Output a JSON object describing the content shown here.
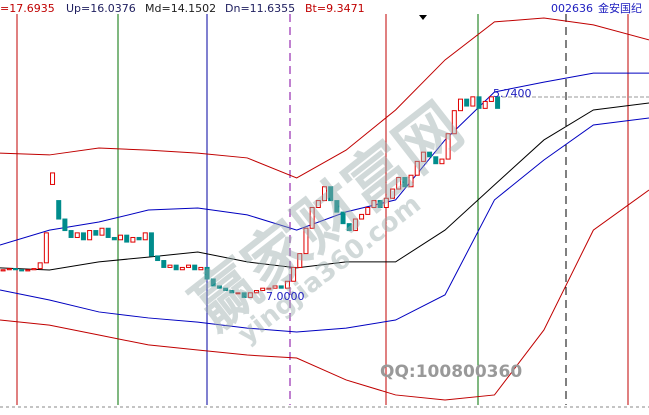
{
  "header": {
    "items": [
      {
        "text": "=17.6935",
        "color": "#c00000"
      },
      {
        "text": "Up=16.0376",
        "color": "#202060"
      },
      {
        "text": "Md=14.1502",
        "color": "#202020"
      },
      {
        "text": "Dn=11.6355",
        "color": "#202060"
      },
      {
        "text": "Bt=9.3471",
        "color": "#c00000"
      }
    ],
    "code": "002636",
    "name": "金安国纪"
  },
  "chart_data": {
    "type": "candlestick",
    "xlim": [
      -0.5,
      104.5
    ],
    "ylim": [
      2,
      20
    ],
    "up_color": "#e00000",
    "down_color": "#008c8c",
    "open": [
      8.25,
      8.3,
      8.35,
      8.3,
      8.25,
      8.3,
      8.35,
      8.6,
      12.0,
      11.3,
      10.5,
      10.0,
      9.7,
      9.9,
      9.6,
      10.0,
      9.8,
      10.1,
      9.7,
      9.6,
      9.8,
      9.5,
      9.7,
      9.6,
      9.9,
      8.9,
      8.7,
      8.4,
      8.5,
      8.3,
      8.4,
      8.5,
      8.3,
      8.4,
      7.9,
      7.6,
      7.5,
      7.4,
      7.3,
      7.3,
      7.1,
      7.3,
      7.4,
      7.5,
      7.5,
      7.6,
      7.5,
      7.8,
      8.4,
      9.0,
      10.1,
      11.0,
      11.3,
      11.9,
      11.3,
      10.8,
      10.3,
      10.0,
      10.5,
      10.7,
      11.0,
      11.3,
      11.0,
      11.4,
      11.8,
      12.3,
      11.9,
      12.4,
      13.0,
      13.4,
      13.2,
      12.9,
      13.1,
      14.2,
      15.2,
      15.7,
      15.4,
      15.8,
      15.3,
      15.6,
      15.8
    ],
    "close": [
      8.3,
      8.35,
      8.3,
      8.25,
      8.3,
      8.35,
      8.6,
      9.9,
      12.5,
      10.5,
      10.0,
      9.7,
      9.9,
      9.6,
      10.0,
      9.8,
      10.1,
      9.7,
      9.6,
      9.8,
      9.5,
      9.7,
      9.6,
      9.9,
      8.9,
      8.7,
      8.4,
      8.5,
      8.3,
      8.4,
      8.5,
      8.3,
      8.4,
      7.9,
      7.6,
      7.5,
      7.4,
      7.3,
      7.3,
      7.1,
      7.3,
      7.4,
      7.5,
      7.5,
      7.6,
      7.5,
      7.8,
      8.4,
      9.0,
      10.1,
      11.0,
      11.3,
      11.9,
      11.3,
      10.8,
      10.3,
      10.0,
      10.5,
      10.7,
      11.0,
      11.3,
      11.0,
      11.4,
      11.8,
      12.3,
      11.9,
      12.4,
      13.0,
      13.4,
      13.2,
      12.9,
      13.1,
      14.2,
      15.2,
      15.7,
      15.4,
      15.8,
      15.3,
      15.6,
      15.8,
      15.3
    ],
    "lines": [
      {
        "color": "#c00000",
        "x": [
          -0.5,
          7.5,
          15.5,
          23.5,
          31.5,
          39.5,
          47.5,
          55.5,
          63.5,
          71.5,
          79.5,
          87.5,
          95.5,
          104.5
        ],
        "values": [
          13.36,
          13.28,
          13.58,
          13.49,
          13.36,
          13.15,
          12.28,
          13.49,
          15.23,
          17.4,
          19.05,
          19.22,
          18.92,
          18.27
        ]
      },
      {
        "color": "#0000c0",
        "x": [
          -0.5,
          7.5,
          15.5,
          23.5,
          31.5,
          39.5,
          47.5,
          55.5,
          63.5,
          71.5,
          79.5,
          87.5,
          95.5,
          104.5
        ],
        "values": [
          9.37,
          10.02,
          10.37,
          10.89,
          10.98,
          10.68,
          10.02,
          10.81,
          11.33,
          13.93,
          16.01,
          16.44,
          16.83,
          16.83
        ]
      },
      {
        "color": "#000000",
        "x": [
          -0.5,
          7.5,
          15.5,
          23.5,
          31.5,
          39.5,
          47.5,
          55.5,
          63.5,
          71.5,
          79.5,
          87.5,
          95.5,
          104.5
        ],
        "values": [
          8.38,
          8.29,
          8.64,
          8.85,
          9.07,
          8.64,
          8.38,
          8.64,
          8.64,
          10.02,
          11.98,
          13.93,
          15.23,
          15.53
        ]
      },
      {
        "color": "#0000c0",
        "x": [
          -0.5,
          7.5,
          15.5,
          23.5,
          31.5,
          39.5,
          47.5,
          55.5,
          63.5,
          71.5,
          79.5,
          87.5,
          95.5,
          104.5
        ],
        "values": [
          7.42,
          6.99,
          6.47,
          6.21,
          6.03,
          5.77,
          5.6,
          5.77,
          6.12,
          7.21,
          11.33,
          13.06,
          14.58,
          14.88
        ]
      },
      {
        "color": "#c00000",
        "x": [
          -0.5,
          7.5,
          15.5,
          23.5,
          31.5,
          39.5,
          47.5,
          55.5,
          63.5,
          71.5,
          79.5,
          87.5,
          95.5,
          104.5
        ],
        "values": [
          6.12,
          5.9,
          5.47,
          5.04,
          4.82,
          4.6,
          4.47,
          3.52,
          2.87,
          2.65,
          2.87,
          5.69,
          10.02,
          11.76
        ]
      }
    ],
    "annotations": [
      "5.7400",
      "7.0000"
    ]
  },
  "watermark": {
    "site": "赢家财富网",
    "url": "yingjia360.com",
    "qq": "QQ:100800360"
  }
}
